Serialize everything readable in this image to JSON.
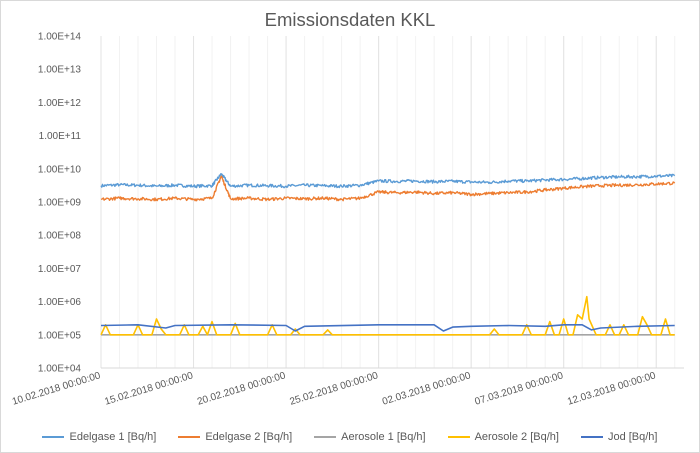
{
  "chart_data": {
    "type": "line",
    "title": "Emissionsdaten KKL",
    "xlabel": "",
    "ylabel": "",
    "yscale": "log",
    "ylim": [
      10000,
      100000000000000
    ],
    "y_tick_labels": [
      "1.00E+04",
      "1.00E+05",
      "1.00E+06",
      "1.00E+07",
      "1.00E+08",
      "1.00E+09",
      "1.00E+10",
      "1.00E+11",
      "1.00E+12",
      "1.00E+13",
      "1.00E+14"
    ],
    "xlim": [
      "10.02.2018 00:00:00",
      "13.03.2018 12:00:00"
    ],
    "x_tick_labels": [
      "10.02.2018 00:00:00",
      "15.02.2018 00:00:00",
      "20.02.2018 00:00:00",
      "25.02.2018 00:00:00",
      "02.03.2018 00:00:00",
      "07.03.2018 00:00:00",
      "12.03.2018 00:00:00"
    ],
    "grid": "vertical",
    "legend_position": "bottom",
    "series": [
      {
        "name": "Edelgase 1 [Bq/h]",
        "color": "#5b9bd5",
        "points": [
          [
            "10.02.2018",
            3100000000.0
          ],
          [
            "11.02.2018",
            3300000000.0
          ],
          [
            "12.02.2018",
            3200000000.0
          ],
          [
            "13.02.2018",
            3000000000.0
          ],
          [
            "14.02.2018",
            3200000000.0
          ],
          [
            "15.02.2018",
            3000000000.0
          ],
          [
            "16.02.2018",
            3100000000.0
          ],
          [
            "16.02.2018 12:00",
            7000000000.0
          ],
          [
            "17.02.2018",
            3000000000.0
          ],
          [
            "18.02.2018",
            3200000000.0
          ],
          [
            "19.02.2018",
            3100000000.0
          ],
          [
            "20.02.2018",
            3000000000.0
          ],
          [
            "21.02.2018",
            3200000000.0
          ],
          [
            "22.02.2018",
            3100000000.0
          ],
          [
            "23.02.2018",
            3000000000.0
          ],
          [
            "24.02.2018",
            3200000000.0
          ],
          [
            "25.02.2018",
            4300000000.0
          ],
          [
            "26.02.2018",
            4200000000.0
          ],
          [
            "27.02.2018",
            4300000000.0
          ],
          [
            "28.02.2018",
            4100000000.0
          ],
          [
            "01.03.2018",
            4200000000.0
          ],
          [
            "02.03.2018",
            4000000000.0
          ],
          [
            "03.03.2018",
            3900000000.0
          ],
          [
            "04.03.2018",
            4300000000.0
          ],
          [
            "05.03.2018",
            4300000000.0
          ],
          [
            "06.03.2018",
            4600000000.0
          ],
          [
            "07.03.2018",
            4800000000.0
          ],
          [
            "08.03.2018",
            5100000000.0
          ],
          [
            "09.03.2018",
            5500000000.0
          ],
          [
            "10.03.2018",
            5700000000.0
          ],
          [
            "11.03.2018",
            5800000000.0
          ],
          [
            "12.03.2018",
            6000000000.0
          ],
          [
            "13.03.2018",
            6200000000.0
          ]
        ]
      },
      {
        "name": "Edelgase 2 [Bq/h]",
        "color": "#ed7d31",
        "points": [
          [
            "10.02.2018",
            1200000000.0
          ],
          [
            "11.02.2018",
            1300000000.0
          ],
          [
            "12.02.2018",
            1250000000.0
          ],
          [
            "13.02.2018",
            1200000000.0
          ],
          [
            "14.02.2018",
            1300000000.0
          ],
          [
            "15.02.2018",
            1200000000.0
          ],
          [
            "16.02.2018",
            1300000000.0
          ],
          [
            "16.02.2018 12:00",
            6000000000.0
          ],
          [
            "17.02.2018",
            1250000000.0
          ],
          [
            "18.02.2018",
            1300000000.0
          ],
          [
            "19.02.2018",
            1200000000.0
          ],
          [
            "20.02.2018",
            1300000000.0
          ],
          [
            "21.02.2018",
            1250000000.0
          ],
          [
            "22.02.2018",
            1300000000.0
          ],
          [
            "23.02.2018",
            1200000000.0
          ],
          [
            "24.02.2018",
            1300000000.0
          ],
          [
            "25.02.2018",
            2000000000.0
          ],
          [
            "26.02.2018",
            1900000000.0
          ],
          [
            "27.02.2018",
            2000000000.0
          ],
          [
            "28.02.2018",
            1800000000.0
          ],
          [
            "01.03.2018",
            1900000000.0
          ],
          [
            "02.03.2018",
            1700000000.0
          ],
          [
            "03.03.2018",
            1800000000.0
          ],
          [
            "04.03.2018",
            1900000000.0
          ],
          [
            "05.03.2018",
            2000000000.0
          ],
          [
            "06.03.2018",
            2300000000.0
          ],
          [
            "07.03.2018",
            2600000000.0
          ],
          [
            "08.03.2018",
            2900000000.0
          ],
          [
            "09.03.2018",
            3100000000.0
          ],
          [
            "10.03.2018",
            3200000000.0
          ],
          [
            "11.03.2018",
            3300000000.0
          ],
          [
            "12.03.2018",
            3500000000.0
          ],
          [
            "13.03.2018",
            3700000000.0
          ]
        ]
      },
      {
        "name": "Aerosole 1 [Bq/h]",
        "color": "#a5a5a5",
        "points": [
          [
            "10.02.2018",
            100000.0
          ],
          [
            "13.03.2018",
            100000.0
          ]
        ]
      },
      {
        "name": "Aerosole 2 [Bq/h]",
        "color": "#ffc000",
        "points": [
          [
            "10.02.2018",
            100000.0
          ],
          [
            "10.02.2018 06:00",
            200000.0
          ],
          [
            "10.02.2018 12:00",
            100000.0
          ],
          [
            "11.02.2018 18:00",
            100000.0
          ],
          [
            "12.02.2018",
            200000.0
          ],
          [
            "12.02.2018 06:00",
            100000.0
          ],
          [
            "12.02.2018 18:00",
            100000.0
          ],
          [
            "13.02.2018",
            300000.0
          ],
          [
            "13.02.2018 06:00",
            150000.0
          ],
          [
            "13.02.2018 12:00",
            100000.0
          ],
          [
            "14.02.2018 06:00",
            100000.0
          ],
          [
            "14.02.2018 12:00",
            200000.0
          ],
          [
            "14.02.2018 18:00",
            100000.0
          ],
          [
            "15.02.2018 06:00",
            100000.0
          ],
          [
            "15.02.2018 12:00",
            180000.0
          ],
          [
            "15.02.2018 18:00",
            100000.0
          ],
          [
            "16.02.2018",
            250000.0
          ],
          [
            "16.02.2018 06:00",
            100000.0
          ],
          [
            "17.02.2018",
            100000.0
          ],
          [
            "17.02.2018 06:00",
            220000.0
          ],
          [
            "17.02.2018 12:00",
            100000.0
          ],
          [
            "19.02.2018",
            100000.0
          ],
          [
            "19.02.2018 06:00",
            200000.0
          ],
          [
            "19.02.2018 12:00",
            100000.0
          ],
          [
            "20.02.2018 06:00",
            100000.0
          ],
          [
            "20.02.2018 12:00",
            150000.0
          ],
          [
            "20.02.2018 18:00",
            100000.0
          ],
          [
            "22.02.2018",
            100000.0
          ],
          [
            "22.02.2018 06:00",
            140000.0
          ],
          [
            "22.02.2018 12:00",
            100000.0
          ],
          [
            "03.03.2018",
            100000.0
          ],
          [
            "03.03.2018 06:00",
            150000.0
          ],
          [
            "03.03.2018 12:00",
            100000.0
          ],
          [
            "04.03.2018 18:00",
            100000.0
          ],
          [
            "05.03.2018",
            200000.0
          ],
          [
            "05.03.2018 06:00",
            100000.0
          ],
          [
            "06.03.2018",
            100000.0
          ],
          [
            "06.03.2018 06:00",
            250000.0
          ],
          [
            "06.03.2018 12:00",
            100000.0
          ],
          [
            "06.03.2018 18:00",
            100000.0
          ],
          [
            "07.03.2018",
            300000.0
          ],
          [
            "07.03.2018 06:00",
            100000.0
          ],
          [
            "07.03.2018 12:00",
            100000.0
          ],
          [
            "07.03.2018 18:00",
            400000.0
          ],
          [
            "08.03.2018",
            300000.0
          ],
          [
            "08.03.2018 06:00",
            1400000.0
          ],
          [
            "08.03.2018 09:00",
            300000.0
          ],
          [
            "08.03.2018 18:00",
            100000.0
          ],
          [
            "09.03.2018 06:00",
            100000.0
          ],
          [
            "09.03.2018 12:00",
            200000.0
          ],
          [
            "09.03.2018 18:00",
            100000.0
          ],
          [
            "10.03.2018",
            100000.0
          ],
          [
            "10.03.2018 06:00",
            200000.0
          ],
          [
            "10.03.2018 12:00",
            100000.0
          ],
          [
            "11.03.2018",
            100000.0
          ],
          [
            "11.03.2018 06:00",
            350000.0
          ],
          [
            "11.03.2018 12:00",
            200000.0
          ],
          [
            "11.03.2018 18:00",
            100000.0
          ],
          [
            "12.03.2018 06:00",
            100000.0
          ],
          [
            "12.03.2018 12:00",
            300000.0
          ],
          [
            "12.03.2018 18:00",
            100000.0
          ],
          [
            "13.03.2018",
            100000.0
          ]
        ]
      },
      {
        "name": "Jod [Bq/h]",
        "color": "#4472c4",
        "points": [
          [
            "10.02.2018",
            190000.0
          ],
          [
            "12.02.2018",
            200000.0
          ],
          [
            "13.02.2018 12:00",
            160000.0
          ],
          [
            "14.02.2018",
            190000.0
          ],
          [
            "17.02.2018",
            200000.0
          ],
          [
            "20.02.2018",
            190000.0
          ],
          [
            "20.02.2018 12:00",
            130000.0
          ],
          [
            "21.02.2018",
            180000.0
          ],
          [
            "25.02.2018",
            200000.0
          ],
          [
            "28.02.2018",
            200000.0
          ],
          [
            "28.02.2018 12:00",
            130000.0
          ],
          [
            "01.03.2018",
            170000.0
          ],
          [
            "02.03.2018",
            180000.0
          ],
          [
            "04.03.2018",
            190000.0
          ],
          [
            "06.03.2018",
            180000.0
          ],
          [
            "07.03.2018",
            200000.0
          ],
          [
            "08.03.2018",
            200000.0
          ],
          [
            "08.03.2018 12:00",
            140000.0
          ],
          [
            "09.03.2018",
            160000.0
          ],
          [
            "11.03.2018",
            180000.0
          ],
          [
            "13.03.2018",
            190000.0
          ]
        ]
      }
    ]
  }
}
